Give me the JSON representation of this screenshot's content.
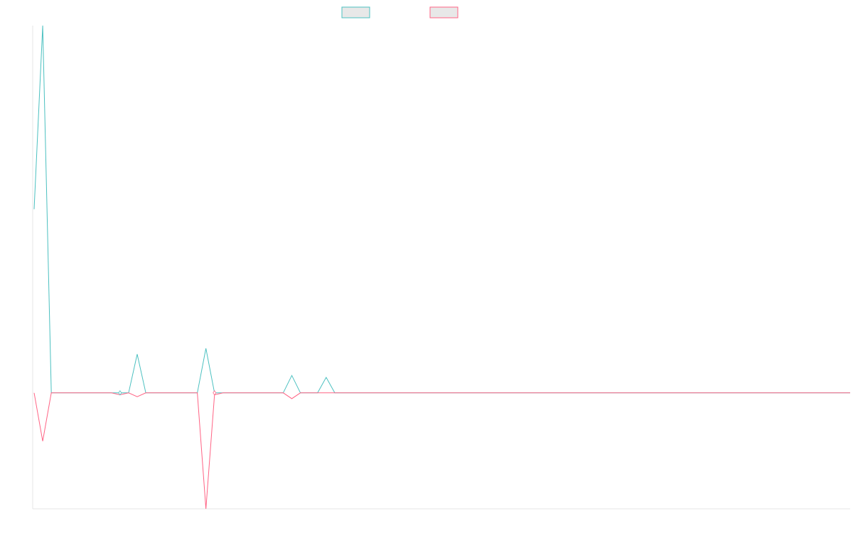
{
  "chart_data": {
    "type": "line",
    "title": "",
    "xlabel": "",
    "ylabel": "",
    "grid": false,
    "legend": "top-center",
    "x": [
      0,
      1,
      2,
      3,
      4,
      5,
      6,
      7,
      8,
      9,
      10,
      11,
      12,
      13,
      14,
      15,
      16,
      17,
      18,
      19,
      20,
      21,
      22,
      23,
      24,
      25,
      26,
      27,
      28,
      29,
      30,
      31,
      32,
      33,
      34,
      35,
      36,
      37,
      38,
      39,
      40,
      41,
      42,
      43,
      44,
      45,
      46,
      47,
      48,
      49,
      50,
      51,
      52,
      53,
      54,
      55,
      56,
      57,
      58,
      59,
      60,
      61,
      62,
      63,
      64,
      65,
      66,
      67,
      68,
      69,
      70,
      71,
      72,
      73,
      74,
      75,
      76,
      77,
      78,
      79,
      80,
      81,
      82,
      83,
      84,
      85,
      86,
      87,
      88,
      89,
      90,
      91,
      92,
      93,
      94,
      95
    ],
    "ylim": [
      -60,
      190
    ],
    "series": [
      {
        "color": "#4bc0c0",
        "values": [
          95,
          190,
          0,
          0,
          0,
          0,
          0,
          0,
          0,
          0,
          0,
          0,
          20,
          0,
          0,
          0,
          0,
          0,
          0,
          0,
          23,
          0,
          0,
          0,
          0,
          0,
          0,
          0,
          0,
          0,
          9,
          0,
          0,
          0,
          8,
          0,
          0,
          0,
          0,
          0,
          0,
          0,
          0,
          0,
          0,
          0,
          0,
          0,
          0,
          0,
          0,
          0,
          0,
          0,
          0,
          0,
          0,
          0,
          0,
          0,
          0,
          0,
          0,
          0,
          0,
          0,
          0,
          0,
          0,
          0,
          0,
          0,
          0,
          0,
          0,
          0,
          0,
          0,
          0,
          0,
          0,
          0,
          0,
          0,
          0,
          0,
          0,
          0,
          0,
          0,
          0,
          0,
          0,
          0,
          0,
          0
        ]
      },
      {
        "color": "#ff6384",
        "values": [
          0,
          -25,
          0,
          0,
          0,
          0,
          0,
          0,
          0,
          0,
          -1,
          0,
          -2,
          0,
          0,
          0,
          0,
          0,
          0,
          0,
          -60,
          -1,
          0,
          0,
          0,
          0,
          0,
          0,
          0,
          0,
          -3,
          0,
          0,
          0,
          0,
          0,
          0,
          0,
          0,
          0,
          0,
          0,
          0,
          0,
          0,
          0,
          0,
          0,
          0,
          0,
          0,
          0,
          0,
          0,
          0,
          0,
          0,
          0,
          0,
          0,
          0,
          0,
          0,
          0,
          0,
          0,
          0,
          0,
          0,
          0,
          0,
          0,
          0,
          0,
          0,
          0,
          0,
          0,
          0,
          0,
          0,
          0,
          0,
          0,
          0,
          0,
          0,
          0,
          0,
          0,
          0,
          0,
          0,
          0,
          0,
          0
        ]
      }
    ]
  }
}
